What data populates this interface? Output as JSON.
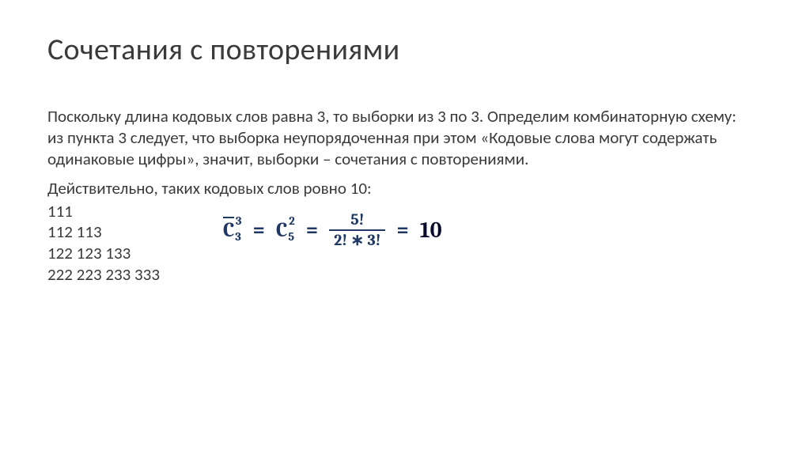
{
  "colors": {
    "background": "#ffffff",
    "text": "#3a3a3a",
    "formula": "#203864",
    "result": "#0b0b2b"
  },
  "typography": {
    "title_fontsize": 38,
    "body_fontsize": 21,
    "formula_fontsize": 26,
    "body_family": "Calibri",
    "formula_family": "Cambria Math"
  },
  "title": "Сочетания с повторениями",
  "paragraph": "Поскольку длина кодовых слов равна 3, то выборки из 3 по 3. Определим комбинаторную схему: из пункта 3 следует, что выборка неупорядоченная при этом «Кодовые слова могут содержать одинаковые цифры», значит, выборки – сочетания с повторениями.",
  "line2": "Действительно, таких кодовых слов ровно 10:",
  "codes": {
    "row1": "111",
    "row2": "112 113",
    "row3": "122 123 133",
    "row4": "222 223 233 333"
  },
  "formula": {
    "lhs_base": "C",
    "lhs_sub": "3",
    "lhs_sup": "3",
    "lhs_has_bar": true,
    "mid_base": "C",
    "mid_sub": "5",
    "mid_sup": "2",
    "frac_num": "5!",
    "frac_den": "2! ∗ 3!",
    "result": "10",
    "eq": "="
  }
}
